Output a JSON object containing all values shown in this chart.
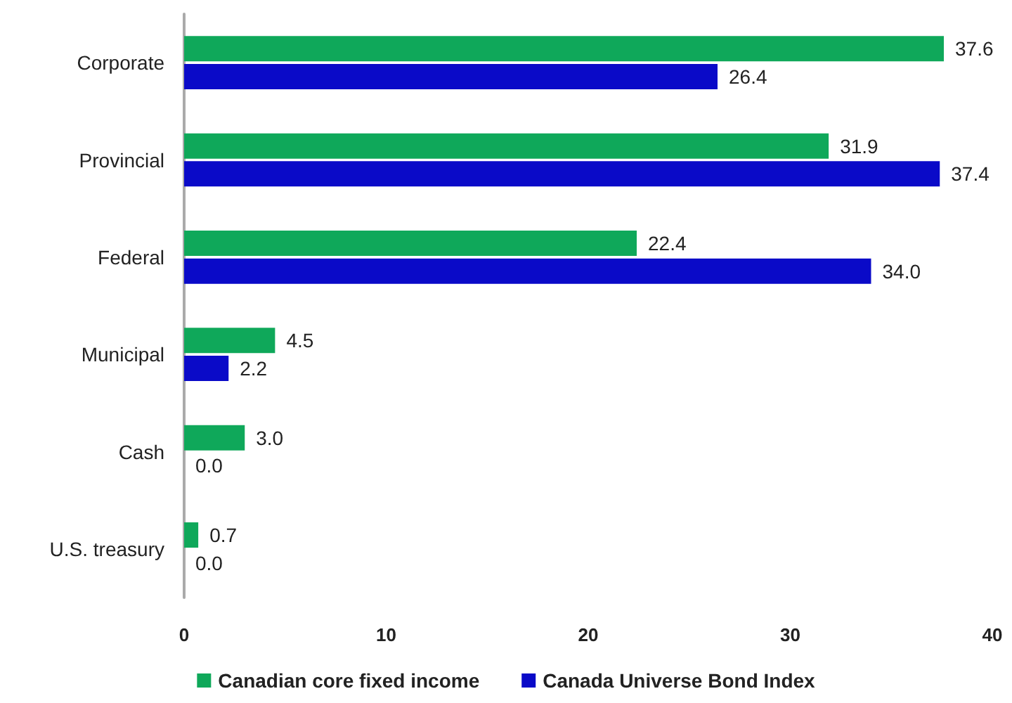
{
  "chart_data": {
    "type": "bar",
    "orientation": "horizontal",
    "categories": [
      "Corporate",
      "Provincial",
      "Federal",
      "Municipal",
      "Cash",
      "U.S. treasury"
    ],
    "series": [
      {
        "name": "Canadian core fixed income",
        "color": "#0fa85a",
        "values": [
          37.6,
          31.9,
          22.4,
          4.5,
          3.0,
          0.7
        ],
        "value_labels": [
          "37.6",
          "31.9",
          "22.4",
          "4.5",
          "3.0",
          "0.7"
        ]
      },
      {
        "name": "Canada Universe Bond Index",
        "color": "#0a0ac8",
        "values": [
          26.4,
          37.4,
          34.0,
          2.2,
          0.0,
          0.0
        ],
        "value_labels": [
          "26.4",
          "37.4",
          "34.0",
          "2.2",
          "0.0",
          "0.0"
        ]
      }
    ],
    "xlim": [
      0,
      40
    ],
    "xticks": [
      0,
      10,
      20,
      30,
      40
    ],
    "grid": false,
    "legend": "bottom"
  }
}
